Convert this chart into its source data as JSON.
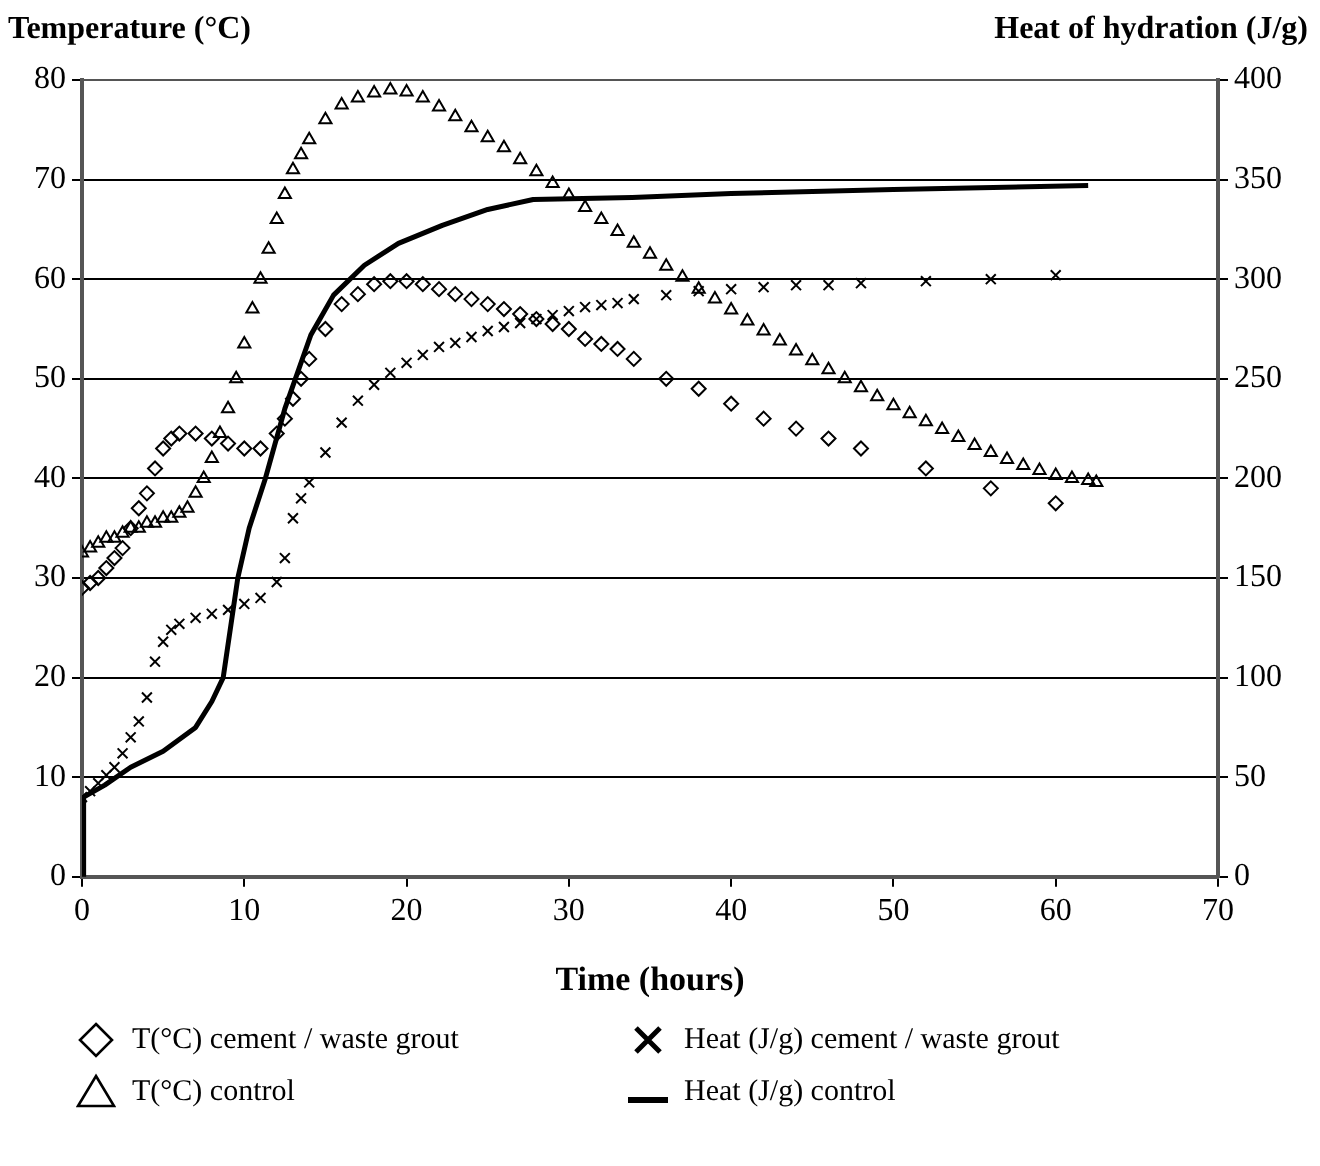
{
  "chart_data": {
    "type": "scatter",
    "xlabel": "Time (hours)",
    "ylabel": "Temperature (°C)",
    "y2label": "Heat of hydration (J/g)",
    "xlim": [
      0,
      70
    ],
    "xticks": [
      0,
      10,
      20,
      30,
      40,
      50,
      60,
      70
    ],
    "ylim": [
      0,
      80
    ],
    "yticks": [
      0,
      10,
      20,
      30,
      40,
      50,
      60,
      70,
      80
    ],
    "y2lim": [
      0,
      400
    ],
    "y2ticks": [
      0,
      50,
      100,
      150,
      200,
      250,
      300,
      350,
      400
    ],
    "grid": "y",
    "legend": "bottom",
    "series": [
      {
        "name": "T(°C) cement / waste grout",
        "type": "scatter",
        "marker": "diamond",
        "color": "#000000",
        "x": [
          0,
          0.5,
          1,
          1.5,
          2,
          2.5,
          3,
          3.5,
          4,
          4.5,
          5,
          5.5,
          6,
          7,
          8,
          9,
          10,
          11,
          12,
          12.5,
          13,
          13.5,
          14,
          15,
          16,
          17,
          18,
          19,
          20,
          21,
          22,
          23,
          24,
          25,
          26,
          27,
          28,
          29,
          30,
          31,
          32,
          33,
          34,
          36,
          38,
          40,
          42,
          44,
          46,
          48,
          52,
          56,
          60
        ],
        "values": [
          29,
          29.5,
          30,
          31,
          32,
          33,
          35,
          37,
          38.5,
          41,
          43,
          44,
          44.5,
          44.5,
          44,
          43.5,
          43,
          43,
          44.5,
          46,
          48,
          50,
          52,
          55,
          57.5,
          58.5,
          59.5,
          59.8,
          59.8,
          59.5,
          59,
          58.5,
          58,
          57.5,
          57,
          56.5,
          56,
          55.5,
          55,
          54,
          53.5,
          53,
          52,
          50,
          49,
          47.5,
          46,
          45,
          44,
          43,
          41,
          39,
          37.5
        ]
      },
      {
        "name": "T(°C) control",
        "type": "scatter",
        "marker": "triangle",
        "color": "#000000",
        "x": [
          0,
          0.5,
          1,
          1.5,
          2,
          2.5,
          3,
          3.5,
          4,
          4.5,
          5,
          5.5,
          6,
          6.5,
          7,
          7.5,
          8,
          8.5,
          9,
          9.5,
          10,
          10.5,
          11,
          11.5,
          12,
          12.5,
          13,
          13.5,
          14,
          15,
          16,
          17,
          18,
          19,
          20,
          21,
          22,
          23,
          24,
          25,
          26,
          27,
          28,
          29,
          30,
          31,
          32,
          33,
          34,
          35,
          36,
          37,
          38,
          39,
          40,
          41,
          42,
          43,
          44,
          45,
          46,
          47,
          48,
          49,
          50,
          51,
          52,
          53,
          54,
          55,
          56,
          57,
          58,
          59,
          60,
          61,
          62,
          62.5
        ],
        "values": [
          32.5,
          33,
          33.5,
          34,
          34,
          34.5,
          35,
          35,
          35.5,
          35.5,
          36,
          36,
          36.5,
          37,
          38.5,
          40,
          42,
          44.5,
          47,
          50,
          53.5,
          57,
          60,
          63,
          66,
          68.5,
          71,
          72.5,
          74,
          76,
          77.5,
          78.2,
          78.7,
          79,
          78.8,
          78.2,
          77.3,
          76.3,
          75.2,
          74.2,
          73.2,
          72,
          70.8,
          69.6,
          68.4,
          67.2,
          66,
          64.8,
          63.6,
          62.5,
          61.3,
          60.2,
          59,
          58,
          56.9,
          55.8,
          54.8,
          53.8,
          52.8,
          51.8,
          50.9,
          50,
          49.1,
          48.2,
          47.3,
          46.5,
          45.7,
          44.9,
          44.1,
          43.3,
          42.6,
          41.9,
          41.3,
          40.8,
          40.3,
          40,
          39.8,
          39.6
        ]
      },
      {
        "name": "Heat (J/g) cement / waste grout",
        "type": "scatter",
        "marker": "cross",
        "axis": "y2",
        "color": "#000000",
        "x": [
          0,
          0.5,
          1,
          1.5,
          2,
          2.5,
          3,
          3.5,
          4,
          4.5,
          5,
          5.5,
          6,
          7,
          8,
          9,
          10,
          11,
          12,
          12.5,
          13,
          13.5,
          14,
          15,
          16,
          17,
          18,
          19,
          20,
          21,
          22,
          23,
          24,
          25,
          26,
          27,
          28,
          29,
          30,
          31,
          32,
          33,
          34,
          36,
          38,
          40,
          42,
          44,
          46,
          48,
          52,
          56,
          60
        ],
        "values": [
          40,
          43,
          47,
          51,
          55,
          62,
          70,
          78,
          90,
          108,
          118,
          124,
          127,
          130,
          132,
          134,
          137,
          140,
          148,
          160,
          180,
          190,
          198,
          213,
          228,
          239,
          247,
          253,
          258,
          262,
          266,
          268,
          271,
          274,
          276,
          278,
          280,
          282,
          284,
          286,
          287,
          288,
          290,
          292,
          294,
          295,
          296,
          297,
          297,
          298,
          299,
          300,
          302
        ]
      },
      {
        "name": "Heat (J/g) control",
        "type": "line",
        "axis": "y2",
        "color": "#000000",
        "x": [
          0,
          0.1,
          1.4,
          3,
          5,
          7,
          8,
          8.7,
          9.6,
          10.3,
          11.3,
          12.5,
          14.1,
          15.5,
          17.4,
          19.5,
          22.2,
          25,
          27.8,
          33.9,
          40,
          50,
          62
        ],
        "values": [
          0,
          40,
          46,
          55,
          63,
          75,
          88,
          100,
          150,
          175,
          200,
          235,
          272,
          292,
          307,
          318,
          327,
          335,
          340,
          341,
          343,
          345,
          347
        ]
      }
    ]
  }
}
